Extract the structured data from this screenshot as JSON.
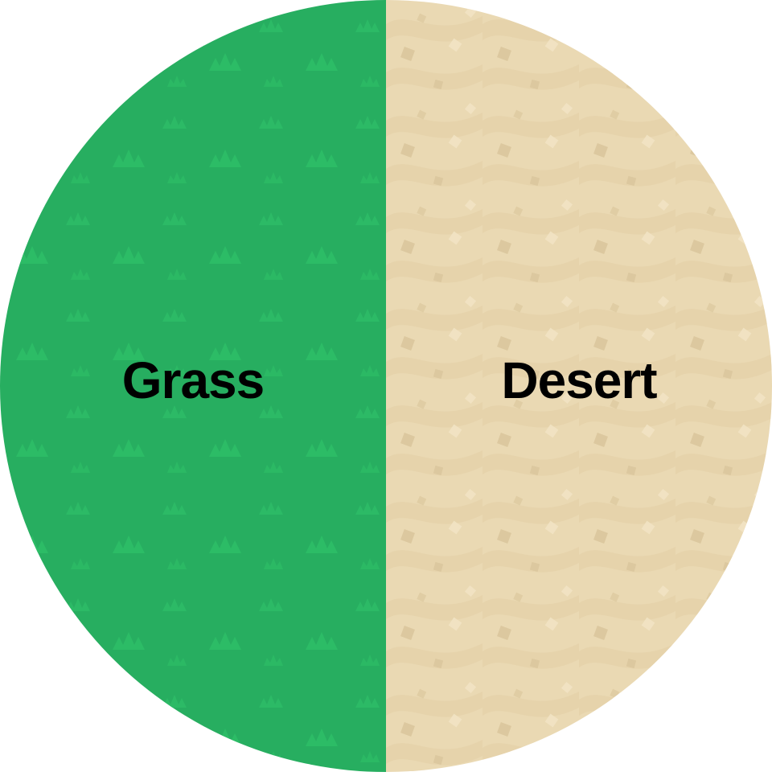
{
  "wheel": {
    "segments": [
      {
        "label": "Grass",
        "color": "#27ae60",
        "pattern_icon": "grass-tuft-icon",
        "pattern_color": "#2ec46a"
      },
      {
        "label": "Desert",
        "color": "#ead9b3",
        "pattern_icon": "sand-dune-icon",
        "pattern_color": "#dfcba0"
      }
    ]
  }
}
